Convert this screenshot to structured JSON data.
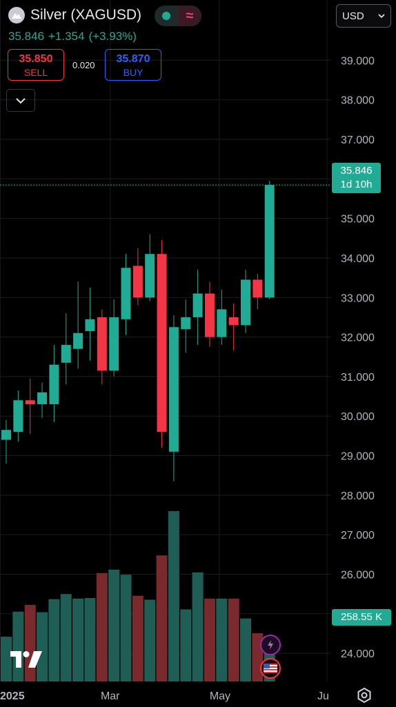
{
  "header": {
    "symbol": "Silver (XAGUSD)",
    "last": "35.846",
    "change": "+1.354",
    "change_pct": "(+3.93%)",
    "sell_price": "35.850",
    "sell_label": "SELL",
    "spread": "0.020",
    "buy_price": "35.870",
    "buy_label": "BUY",
    "currency": "USD"
  },
  "tags": {
    "price": "35.846",
    "countdown": "1d 10h",
    "volume": "258.55 K"
  },
  "colors": {
    "up": "#22ab94",
    "down": "#f23645",
    "vol_up": "#1e5e55",
    "vol_down": "#7a2a2c",
    "background": "#000000",
    "grid": "#1a1c20",
    "axis_text": "#b2b5be"
  },
  "icons": [
    "silver-logo-icon",
    "market-open-dot-icon",
    "wave-icon",
    "chevron-down-icon",
    "tradingview-logo-icon",
    "lightning-icon",
    "us-flag-icon",
    "settings-icon"
  ],
  "chart_data": {
    "type": "candlestick",
    "title": "",
    "interval": "1W",
    "y_ticks": [
      24,
      25,
      26,
      27,
      28,
      29,
      30,
      31,
      32,
      33,
      34,
      35,
      36,
      37,
      38,
      39
    ],
    "ylim": [
      23.6,
      39.6
    ],
    "y_decimals": 3,
    "x_ticks": [
      {
        "label": "2025",
        "index": -0.5
      },
      {
        "label": "Mar",
        "index": 8.7
      },
      {
        "label": "May",
        "index": 17.8
      },
      {
        "label": "Ju",
        "index": 26.8
      }
    ],
    "candles": [
      {
        "o": 29.4,
        "h": 29.9,
        "l": 28.8,
        "c": 29.65
      },
      {
        "o": 29.6,
        "h": 30.65,
        "l": 29.35,
        "c": 30.4
      },
      {
        "o": 30.4,
        "h": 30.95,
        "l": 29.55,
        "c": 30.3
      },
      {
        "o": 30.3,
        "h": 30.85,
        "l": 29.95,
        "c": 30.6
      },
      {
        "o": 30.3,
        "h": 31.8,
        "l": 29.85,
        "c": 31.3
      },
      {
        "o": 31.35,
        "h": 32.6,
        "l": 30.8,
        "c": 31.8
      },
      {
        "o": 31.7,
        "h": 33.4,
        "l": 31.2,
        "c": 32.1
      },
      {
        "o": 32.15,
        "h": 33.25,
        "l": 31.4,
        "c": 32.45
      },
      {
        "o": 32.5,
        "h": 32.7,
        "l": 30.8,
        "c": 31.15
      },
      {
        "o": 31.15,
        "h": 32.95,
        "l": 31.0,
        "c": 32.5
      },
      {
        "o": 32.45,
        "h": 34.1,
        "l": 32.05,
        "c": 33.75
      },
      {
        "o": 33.8,
        "h": 34.25,
        "l": 32.8,
        "c": 33.0
      },
      {
        "o": 33.0,
        "h": 34.6,
        "l": 32.9,
        "c": 34.1
      },
      {
        "o": 34.1,
        "h": 34.45,
        "l": 29.2,
        "c": 29.6
      },
      {
        "o": 29.1,
        "h": 32.55,
        "l": 28.35,
        "c": 32.25
      },
      {
        "o": 32.2,
        "h": 32.95,
        "l": 31.6,
        "c": 32.5
      },
      {
        "o": 32.5,
        "h": 33.7,
        "l": 31.8,
        "c": 33.1
      },
      {
        "o": 33.1,
        "h": 33.4,
        "l": 31.75,
        "c": 32.0
      },
      {
        "o": 32.0,
        "h": 33.2,
        "l": 31.8,
        "c": 32.7
      },
      {
        "o": 32.5,
        "h": 32.85,
        "l": 31.65,
        "c": 32.3
      },
      {
        "o": 32.3,
        "h": 33.7,
        "l": 32.1,
        "c": 33.45
      },
      {
        "o": 33.45,
        "h": 33.6,
        "l": 32.7,
        "c": 33.0
      },
      {
        "o": 33.0,
        "h": 35.95,
        "l": 32.95,
        "c": 35.846
      }
    ],
    "volume": [
      {
        "v": 0.79,
        "dir": "up"
      },
      {
        "v": 1.23,
        "dir": "up"
      },
      {
        "v": 1.35,
        "dir": "down"
      },
      {
        "v": 1.22,
        "dir": "up"
      },
      {
        "v": 1.45,
        "dir": "up"
      },
      {
        "v": 1.54,
        "dir": "up"
      },
      {
        "v": 1.46,
        "dir": "up"
      },
      {
        "v": 1.47,
        "dir": "up"
      },
      {
        "v": 1.91,
        "dir": "down"
      },
      {
        "v": 1.97,
        "dir": "up"
      },
      {
        "v": 1.88,
        "dir": "up"
      },
      {
        "v": 1.51,
        "dir": "down"
      },
      {
        "v": 1.44,
        "dir": "up"
      },
      {
        "v": 2.22,
        "dir": "down"
      },
      {
        "v": 3.0,
        "dir": "up"
      },
      {
        "v": 1.27,
        "dir": "up"
      },
      {
        "v": 1.92,
        "dir": "up"
      },
      {
        "v": 1.46,
        "dir": "down"
      },
      {
        "v": 1.46,
        "dir": "up"
      },
      {
        "v": 1.46,
        "dir": "down"
      },
      {
        "v": 1.11,
        "dir": "up"
      },
      {
        "v": 0.85,
        "dir": "down"
      },
      {
        "v": 0.8,
        "dir": "up"
      }
    ]
  }
}
